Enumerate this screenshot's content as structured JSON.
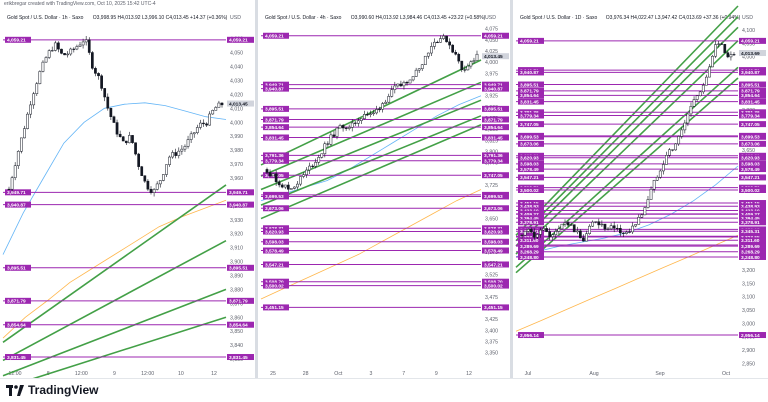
{
  "credit": "erikbregar created with TradingView.com, Oct 10, 2025 15:42 UTC-4",
  "brand": "TradingView",
  "colors": {
    "level_line": "#9c27b0",
    "level_label_bg": "#9c27b0",
    "channel": "#43a047",
    "ma_blue": "#64b5f6",
    "ma_orange": "#ffb74d",
    "candle": "#131722",
    "price_label": "#d1d4dc"
  },
  "chart_data": [
    {
      "type": "candlestick",
      "title": "Gold Spot / U.S. Dollar · 1h · Saxo",
      "ohlc_text": "O3,998.95 H4,013.92 L3,996.10 C4,013.45 +14.37 (+0.36%)",
      "currency": "USD",
      "ylim": [
        3825,
        4072
      ],
      "y_ticks": [
        3830,
        3840,
        3850,
        3860,
        3870,
        3880,
        3890,
        3900,
        3910,
        3920,
        3930,
        3940,
        3950,
        3960,
        3970,
        3980,
        3990,
        4000,
        4010,
        4020,
        4030,
        4040,
        4050,
        4060,
        4070
      ],
      "x_ticks": [
        "12:00",
        "8",
        "12:00",
        "9",
        "12:00",
        "10",
        "12"
      ],
      "levels": [
        4059.21,
        3949.71,
        3940.87,
        3895.51,
        3871.79,
        3854.64,
        3831.45
      ],
      "current_price": 4013.45,
      "close_path": [
        3952,
        3975,
        3996,
        4018,
        4035,
        4048,
        4056,
        4048,
        4050,
        4055,
        4060,
        4040,
        4030,
        4010,
        3995,
        3985,
        3990,
        3970,
        3955,
        3950,
        3960,
        3975,
        3978,
        3982,
        3990,
        3998,
        4000,
        4010,
        4013
      ],
      "ma_blue": [
        3905,
        3935,
        3960,
        3985,
        4000,
        4010,
        4013,
        4014,
        4012,
        4008,
        4004,
        4002
      ],
      "ma_orange": [
        3845,
        3860,
        3872,
        3885,
        3895,
        3905,
        3915,
        3925,
        3932,
        3938,
        3944
      ],
      "channels": [
        [
          3842,
          3955
        ],
        [
          3829,
          3915
        ],
        [
          3818,
          3880
        ],
        [
          3809,
          3860
        ]
      ]
    },
    {
      "type": "candlestick",
      "title": "Gold Spot / U.S. Dollar · 4h · Saxo",
      "ohlc_text": "O3,990.60 H4,013.92 L3,984.46 C4,013.45 +23.22 (+0.58%)",
      "currency": "USD",
      "ylim": [
        3320,
        4090
      ],
      "y_ticks": [
        3350,
        3375,
        3400,
        3425,
        3450,
        3475,
        3500,
        3525,
        3550,
        3575,
        3600,
        3625,
        3650,
        3675,
        3700,
        3725,
        3750,
        3775,
        3800,
        3825,
        3850,
        3875,
        3900,
        3925,
        3950,
        3975,
        4000,
        4025,
        4050,
        4075
      ],
      "x_ticks": [
        "25",
        "28",
        "Oct",
        "3",
        "7",
        "9",
        "12"
      ],
      "levels": [
        4059.21,
        3949.71,
        3940.87,
        3895.51,
        3871.79,
        3854.64,
        3831.45,
        3791.36,
        3779.34,
        3747.05,
        3703.0,
        3699.53,
        3673.06,
        3628.31,
        3620.93,
        3598.03,
        3578.49,
        3547.21,
        3508.7,
        3500.02,
        3451.15
      ],
      "current_price": 4013.45,
      "close_path": [
        3760,
        3740,
        3725,
        3715,
        3730,
        3750,
        3770,
        3790,
        3820,
        3840,
        3860,
        3850,
        3870,
        3885,
        3880,
        3900,
        3920,
        3940,
        3950,
        3965,
        3980,
        4010,
        4040,
        4055,
        4050,
        4020,
        3985,
        3995,
        4013
      ],
      "ma_blue": [
        3690,
        3705,
        3720,
        3735,
        3760,
        3790,
        3820,
        3850,
        3880,
        3905,
        3925
      ],
      "ma_orange": [
        3470,
        3495,
        3520,
        3545,
        3570,
        3600,
        3630,
        3660,
        3690,
        3715
      ],
      "channels": [
        [
          3770,
          4005
        ],
        [
          3745,
          3955
        ],
        [
          3715,
          3915
        ],
        [
          3680,
          3880
        ],
        [
          3650,
          3860
        ]
      ]
    },
    {
      "type": "candlestick",
      "title": "Gold Spot / U.S. Dollar · 1D · Saxo",
      "ohlc_text": "O3,976.34 H4,022.47 L3,947.42 C4,013.69 +37.36 (+0.94%)",
      "currency": "USD",
      "ylim": [
        2840,
        4130
      ],
      "y_ticks": [
        2850,
        2900,
        2950,
        3000,
        3050,
        3100,
        3150,
        3200,
        3250,
        3300,
        3350,
        3400,
        3450,
        3500,
        3550,
        3600,
        3650,
        3700,
        3750,
        3800,
        3850,
        3900,
        3950,
        4000,
        4050,
        4100
      ],
      "x_ticks": [
        "Jul",
        "Aug",
        "Sep",
        "Oct"
      ],
      "levels": [
        4059.21,
        3949.71,
        3940.87,
        3895.51,
        3871.79,
        3854.64,
        3831.45,
        3791.36,
        3779.34,
        3747.05,
        3703.0,
        3699.53,
        3673.06,
        3628.31,
        3620.93,
        3598.03,
        3578.49,
        3547.21,
        3508.7,
        3500.02,
        3451.15,
        3438.93,
        3423.1,
        3410.5,
        3409.27,
        3394.45,
        3378.91,
        3352.18,
        3345.31,
        3326.38,
        3323.55,
        3311.6,
        3293.59,
        3289.69,
        3268.29,
        3248.8,
        2956.14
      ],
      "current_price": 4013.69,
      "close_path": [
        3330,
        3345,
        3320,
        3360,
        3340,
        3325,
        3350,
        3380,
        3365,
        3340,
        3310,
        3350,
        3390,
        3370,
        3345,
        3360,
        3345,
        3335,
        3355,
        3380,
        3420,
        3480,
        3540,
        3590,
        3640,
        3660,
        3700,
        3760,
        3820,
        3860,
        3900,
        3960,
        4040,
        4055,
        3990,
        4013
      ],
      "ma_blue": [
        3250,
        3270,
        3290,
        3305,
        3320,
        3340,
        3370,
        3410,
        3460,
        3520,
        3590
      ],
      "ma_orange": [
        2970,
        3010,
        3050,
        3090,
        3130,
        3170,
        3210,
        3250,
        3290,
        3330
      ],
      "channels": [
        [
          3260,
          4060
        ],
        [
          3290,
          4110
        ],
        [
          3310,
          4150
        ],
        [
          3330,
          4190
        ],
        [
          3210,
          3960
        ],
        [
          3190,
          3920
        ]
      ]
    }
  ]
}
